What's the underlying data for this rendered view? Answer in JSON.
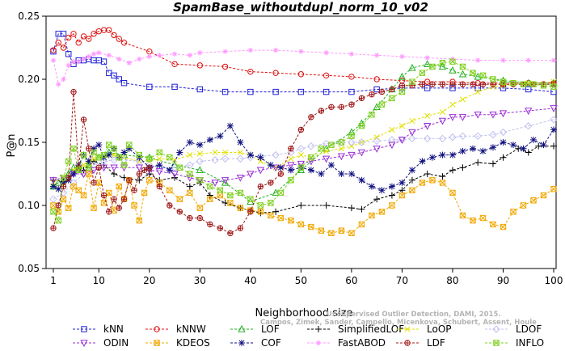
{
  "chart_data": {
    "type": "line",
    "title": "SpamBase_withoutdupl_norm_10_v02",
    "xlabel": "Neighborhood size",
    "ylabel": "P@n",
    "xlim": [
      0,
      100
    ],
    "ylim": [
      0.05,
      0.25
    ],
    "xticks": [
      "1",
      "10",
      "20",
      "30",
      "40",
      "50",
      "60",
      "70",
      "80",
      "90",
      "100"
    ],
    "yticks": [
      "0.05",
      "0.10",
      "0.15",
      "0.20",
      "0.25"
    ],
    "grid": false,
    "legend_position": "bottom",
    "credit": [
      "Unsupervised Outlier Detection, DAMI, 2015.",
      "Campos, Zimek, Sander, Campello, Micenkova, Schubert, Assent, Houle"
    ],
    "series": [
      {
        "name": "kNN",
        "color": "#1f1fd6",
        "marker": "square",
        "x": [
          1,
          2,
          3,
          4,
          5,
          6,
          7,
          8,
          9,
          10,
          11,
          12,
          13,
          14,
          15,
          20,
          25,
          30,
          35,
          40,
          45,
          50,
          55,
          60,
          65,
          70,
          75,
          80,
          85,
          90,
          95,
          100
        ],
        "y": [
          0.222,
          0.236,
          0.236,
          0.22,
          0.212,
          0.215,
          0.215,
          0.216,
          0.215,
          0.215,
          0.214,
          0.205,
          0.203,
          0.2,
          0.197,
          0.194,
          0.194,
          0.192,
          0.19,
          0.19,
          0.19,
          0.19,
          0.19,
          0.19,
          0.192,
          0.193,
          0.193,
          0.193,
          0.193,
          0.193,
          0.192,
          0.19
        ]
      },
      {
        "name": "kNNW",
        "color": "#e01010",
        "marker": "circle",
        "x": [
          1,
          2,
          3,
          4,
          5,
          6,
          7,
          8,
          9,
          10,
          11,
          12,
          13,
          14,
          15,
          20,
          25,
          30,
          35,
          40,
          45,
          50,
          55,
          60,
          65,
          70,
          75,
          80,
          85,
          90,
          95,
          100
        ],
        "y": [
          0.223,
          0.229,
          0.225,
          0.233,
          0.236,
          0.229,
          0.234,
          0.232,
          0.236,
          0.238,
          0.239,
          0.239,
          0.235,
          0.232,
          0.229,
          0.222,
          0.212,
          0.211,
          0.21,
          0.206,
          0.205,
          0.204,
          0.203,
          0.202,
          0.2,
          0.199,
          0.198,
          0.198,
          0.197,
          0.197,
          0.197,
          0.197
        ]
      },
      {
        "name": "LOF",
        "color": "#22b022",
        "marker": "triangle",
        "x": [
          1,
          2,
          3,
          4,
          5,
          6,
          8,
          10,
          12,
          15,
          20,
          25,
          30,
          35,
          40,
          45,
          50,
          55,
          60,
          62,
          65,
          68,
          70,
          72,
          75,
          78,
          80,
          82,
          85,
          90,
          95,
          100
        ],
        "y": [
          0.115,
          0.118,
          0.12,
          0.125,
          0.13,
          0.128,
          0.132,
          0.138,
          0.142,
          0.14,
          0.138,
          0.132,
          0.128,
          0.118,
          0.103,
          0.11,
          0.128,
          0.145,
          0.158,
          0.165,
          0.178,
          0.192,
          0.202,
          0.209,
          0.212,
          0.21,
          0.207,
          0.204,
          0.202,
          0.199,
          0.197,
          0.197
        ]
      },
      {
        "name": "SimplifiedLOF",
        "color": "#000000",
        "marker": "plus",
        "x": [
          1,
          3,
          5,
          7,
          9,
          11,
          13,
          15,
          18,
          20,
          22,
          25,
          28,
          30,
          32,
          35,
          38,
          40,
          42,
          45,
          50,
          55,
          60,
          62,
          65,
          68,
          70,
          72,
          75,
          78,
          80,
          82,
          85,
          88,
          90,
          93,
          95,
          97,
          100
        ],
        "y": [
          0.12,
          0.119,
          0.125,
          0.128,
          0.135,
          0.132,
          0.125,
          0.122,
          0.12,
          0.125,
          0.12,
          0.122,
          0.115,
          0.118,
          0.108,
          0.102,
          0.098,
          0.096,
          0.094,
          0.095,
          0.1,
          0.1,
          0.098,
          0.097,
          0.105,
          0.108,
          0.112,
          0.12,
          0.125,
          0.123,
          0.128,
          0.13,
          0.134,
          0.133,
          0.138,
          0.145,
          0.142,
          0.147,
          0.147
        ]
      },
      {
        "name": "LoOP",
        "color": "#e0e000",
        "marker": "x",
        "x": [
          1,
          3,
          5,
          7,
          9,
          11,
          13,
          15,
          18,
          20,
          22,
          25,
          28,
          30,
          33,
          35,
          38,
          40,
          42,
          45,
          48,
          50,
          52,
          55,
          58,
          60,
          62,
          65,
          68,
          70,
          72,
          75,
          78,
          80,
          82,
          85,
          88,
          90,
          95,
          100
        ],
        "y": [
          0.118,
          0.122,
          0.128,
          0.132,
          0.137,
          0.14,
          0.14,
          0.138,
          0.135,
          0.135,
          0.137,
          0.136,
          0.14,
          0.141,
          0.142,
          0.142,
          0.142,
          0.14,
          0.135,
          0.13,
          0.137,
          0.14,
          0.138,
          0.143,
          0.145,
          0.147,
          0.15,
          0.154,
          0.16,
          0.163,
          0.167,
          0.171,
          0.174,
          0.18,
          0.184,
          0.19,
          0.194,
          0.195,
          0.197,
          0.198
        ]
      },
      {
        "name": "LDOF",
        "color": "#c0c0f0",
        "marker": "diamond",
        "x": [
          1,
          3,
          5,
          7,
          9,
          11,
          13,
          15,
          18,
          20,
          22,
          25,
          28,
          30,
          33,
          35,
          38,
          40,
          42,
          45,
          48,
          50,
          52,
          55,
          58,
          60,
          62,
          65,
          68,
          70,
          72,
          75,
          78,
          80,
          82,
          85,
          88,
          90,
          95,
          100
        ],
        "y": [
          0.105,
          0.11,
          0.118,
          0.125,
          0.132,
          0.135,
          0.136,
          0.136,
          0.135,
          0.132,
          0.13,
          0.13,
          0.132,
          0.135,
          0.136,
          0.137,
          0.137,
          0.138,
          0.139,
          0.14,
          0.142,
          0.145,
          0.147,
          0.149,
          0.15,
          0.15,
          0.15,
          0.151,
          0.152,
          0.152,
          0.153,
          0.153,
          0.153,
          0.154,
          0.155,
          0.155,
          0.156,
          0.158,
          0.163,
          0.168
        ]
      },
      {
        "name": "ODIN",
        "color": "#9a2fd6",
        "marker": "triangle-down",
        "x": [
          1,
          3,
          5,
          7,
          9,
          11,
          13,
          15,
          18,
          20,
          22,
          25,
          28,
          30,
          33,
          35,
          38,
          40,
          42,
          45,
          48,
          50,
          52,
          55,
          58,
          60,
          62,
          65,
          68,
          70,
          72,
          75,
          78,
          80,
          82,
          85,
          88,
          90,
          95,
          100
        ],
        "y": [
          0.12,
          0.122,
          0.125,
          0.125,
          0.128,
          0.13,
          0.13,
          0.13,
          0.13,
          0.128,
          0.127,
          0.125,
          0.122,
          0.12,
          0.118,
          0.12,
          0.122,
          0.125,
          0.128,
          0.13,
          0.132,
          0.133,
          0.135,
          0.137,
          0.139,
          0.14,
          0.142,
          0.145,
          0.148,
          0.152,
          0.158,
          0.163,
          0.167,
          0.17,
          0.17,
          0.172,
          0.172,
          0.173,
          0.175,
          0.177
        ]
      },
      {
        "name": "KDEOS",
        "color": "#f0a800",
        "marker": "square-x",
        "x": [
          1,
          2,
          3,
          4,
          5,
          6,
          7,
          8,
          9,
          10,
          11,
          12,
          13,
          14,
          15,
          16,
          17,
          18,
          19,
          20,
          22,
          24,
          26,
          28,
          30,
          32,
          34,
          36,
          38,
          40,
          42,
          44,
          46,
          48,
          50,
          52,
          54,
          56,
          58,
          60,
          62,
          64,
          66,
          68,
          70,
          72,
          74,
          76,
          78,
          80,
          82,
          84,
          86,
          88,
          90,
          92,
          94,
          96,
          98,
          100
        ],
        "y": [
          0.1,
          0.095,
          0.105,
          0.098,
          0.115,
          0.112,
          0.108,
          0.125,
          0.098,
          0.118,
          0.102,
          0.11,
          0.096,
          0.115,
          0.105,
          0.12,
          0.1,
          0.088,
          0.11,
          0.12,
          0.118,
          0.112,
          0.105,
          0.11,
          0.098,
          0.105,
          0.108,
          0.102,
          0.098,
          0.096,
          0.095,
          0.092,
          0.09,
          0.088,
          0.085,
          0.083,
          0.08,
          0.078,
          0.08,
          0.078,
          0.085,
          0.092,
          0.095,
          0.1,
          0.108,
          0.112,
          0.118,
          0.12,
          0.118,
          0.11,
          0.092,
          0.088,
          0.09,
          0.085,
          0.083,
          0.095,
          0.1,
          0.104,
          0.108,
          0.113
        ]
      },
      {
        "name": "COF",
        "color": "#101080",
        "marker": "asterisk",
        "x": [
          1,
          2,
          3,
          4,
          5,
          6,
          7,
          8,
          9,
          10,
          11,
          12,
          13,
          14,
          15,
          16,
          18,
          20,
          22,
          24,
          26,
          28,
          30,
          32,
          34,
          36,
          38,
          40,
          42,
          44,
          46,
          48,
          50,
          52,
          54,
          56,
          58,
          60,
          62,
          64,
          66,
          68,
          70,
          72,
          74,
          76,
          78,
          80,
          82,
          84,
          86,
          88,
          90,
          92,
          94,
          96,
          98,
          100
        ],
        "y": [
          0.115,
          0.113,
          0.118,
          0.12,
          0.125,
          0.132,
          0.14,
          0.135,
          0.145,
          0.148,
          0.138,
          0.14,
          0.145,
          0.138,
          0.142,
          0.145,
          0.138,
          0.13,
          0.132,
          0.128,
          0.142,
          0.15,
          0.148,
          0.152,
          0.155,
          0.163,
          0.15,
          0.14,
          0.138,
          0.132,
          0.13,
          0.128,
          0.13,
          0.128,
          0.125,
          0.132,
          0.125,
          0.125,
          0.12,
          0.115,
          0.112,
          0.115,
          0.118,
          0.128,
          0.135,
          0.138,
          0.14,
          0.14,
          0.143,
          0.145,
          0.143,
          0.146,
          0.15,
          0.148,
          0.145,
          0.152,
          0.148,
          0.16
        ]
      },
      {
        "name": "FastABOD",
        "color": "#ff99ff",
        "marker": "star",
        "x": [
          1,
          2,
          3,
          4,
          5,
          6,
          7,
          8,
          9,
          10,
          12,
          14,
          16,
          18,
          20,
          22,
          25,
          28,
          30,
          35,
          40,
          45,
          50,
          55,
          60,
          65,
          70,
          75,
          80,
          85,
          90,
          95,
          100
        ],
        "y": [
          0.215,
          0.196,
          0.2,
          0.211,
          0.214,
          0.214,
          0.216,
          0.218,
          0.22,
          0.221,
          0.219,
          0.216,
          0.213,
          0.216,
          0.218,
          0.219,
          0.22,
          0.219,
          0.221,
          0.222,
          0.223,
          0.223,
          0.222,
          0.221,
          0.22,
          0.219,
          0.218,
          0.217,
          0.216,
          0.215,
          0.215,
          0.215,
          0.215
        ]
      },
      {
        "name": "LDF",
        "color": "#a01818",
        "marker": "circle-plus",
        "x": [
          1,
          2,
          3,
          4,
          5,
          6,
          7,
          8,
          9,
          10,
          11,
          12,
          13,
          14,
          15,
          16,
          17,
          18,
          19,
          20,
          22,
          24,
          26,
          28,
          30,
          32,
          34,
          36,
          38,
          40,
          42,
          44,
          46,
          48,
          50,
          52,
          54,
          56,
          58,
          60,
          62,
          64,
          66,
          68,
          70,
          72,
          74,
          76,
          78,
          80,
          82,
          84,
          86,
          88,
          90,
          92,
          94,
          96,
          98,
          100
        ],
        "y": [
          0.082,
          0.1,
          0.115,
          0.122,
          0.19,
          0.13,
          0.168,
          0.145,
          0.118,
          0.13,
          0.108,
          0.095,
          0.105,
          0.098,
          0.105,
          0.12,
          0.112,
          0.125,
          0.128,
          0.13,
          0.115,
          0.1,
          0.095,
          0.09,
          0.09,
          0.085,
          0.082,
          0.078,
          0.082,
          0.095,
          0.115,
          0.118,
          0.125,
          0.145,
          0.16,
          0.17,
          0.175,
          0.178,
          0.178,
          0.18,
          0.185,
          0.188,
          0.19,
          0.192,
          0.195,
          0.195,
          0.196,
          0.196,
          0.196,
          0.196,
          0.196,
          0.196,
          0.196,
          0.196,
          0.196,
          0.196,
          0.196,
          0.196,
          0.196,
          0.196
        ]
      },
      {
        "name": "INFLO",
        "color": "#80d020",
        "marker": "square-x",
        "x": [
          1,
          2,
          3,
          4,
          5,
          6,
          7,
          8,
          9,
          10,
          11,
          12,
          13,
          14,
          15,
          16,
          18,
          20,
          22,
          24,
          26,
          28,
          30,
          32,
          34,
          36,
          38,
          40,
          42,
          44,
          46,
          48,
          50,
          52,
          54,
          56,
          58,
          60,
          62,
          64,
          66,
          68,
          70,
          72,
          74,
          76,
          78,
          80,
          82,
          84,
          86,
          88,
          90,
          92,
          94,
          96,
          98,
          100
        ],
        "y": [
          0.095,
          0.088,
          0.122,
          0.135,
          0.145,
          0.128,
          0.14,
          0.13,
          0.142,
          0.138,
          0.14,
          0.148,
          0.145,
          0.138,
          0.132,
          0.148,
          0.14,
          0.137,
          0.142,
          0.138,
          0.13,
          0.125,
          0.12,
          0.115,
          0.112,
          0.108,
          0.11,
          0.105,
          0.1,
          0.102,
          0.11,
          0.12,
          0.13,
          0.138,
          0.145,
          0.148,
          0.15,
          0.155,
          0.163,
          0.172,
          0.18,
          0.185,
          0.19,
          0.198,
          0.205,
          0.21,
          0.213,
          0.214,
          0.21,
          0.205,
          0.203,
          0.2,
          0.198,
          0.197,
          0.196,
          0.196,
          0.195,
          0.194
        ]
      }
    ]
  }
}
